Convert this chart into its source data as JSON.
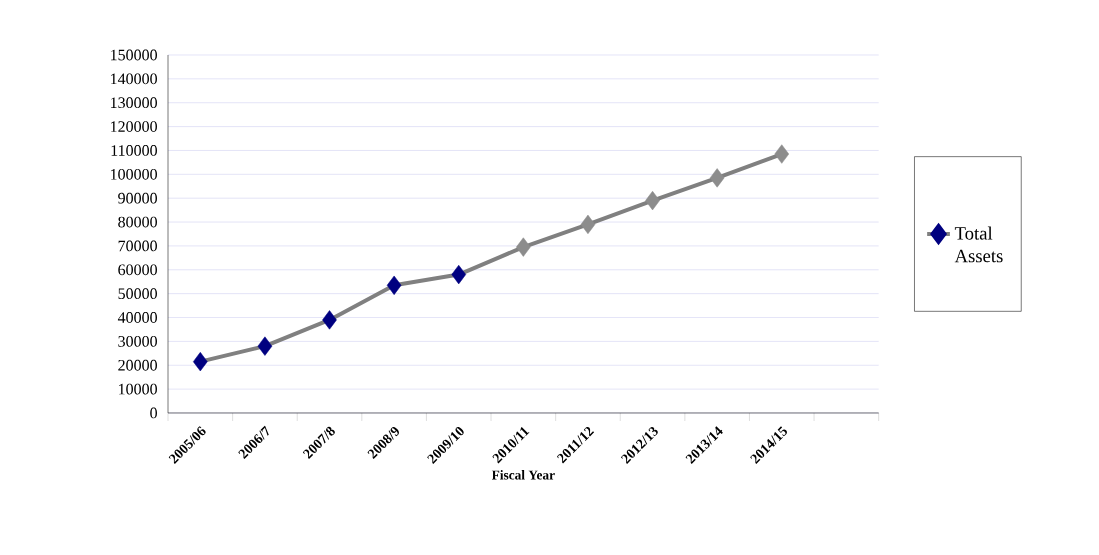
{
  "chart_data": {
    "type": "line",
    "xlabel": "Fiscal Year",
    "categories": [
      "2005/06",
      "2006/7",
      "2007/8",
      "2008/9",
      "2009/10",
      "2010/11",
      "2011/12",
      "2012/13",
      "2013/14",
      "2014/15",
      null
    ],
    "series": [
      {
        "name": "Total Assets",
        "color": "#808080",
        "colors": [
          "#000080",
          "#000080",
          "#000080",
          "#000080",
          "#000080",
          "#8c8c8c",
          "#8c8c8c",
          "#8c8c8c",
          "#8c8c8c",
          "#8c8c8c",
          null
        ],
        "values": [
          21500,
          28000,
          39000,
          53500,
          58000,
          69500,
          79000,
          89000,
          98500,
          108500,
          null
        ]
      }
    ],
    "ylim": [
      0,
      150000
    ],
    "yticks": [
      0,
      10000,
      20000,
      30000,
      40000,
      50000,
      60000,
      70000,
      80000,
      90000,
      100000,
      110000,
      120000,
      130000,
      140000,
      150000
    ],
    "grid": "y",
    "legend": "right",
    "marker": "diamond",
    "line_style": "solid"
  }
}
